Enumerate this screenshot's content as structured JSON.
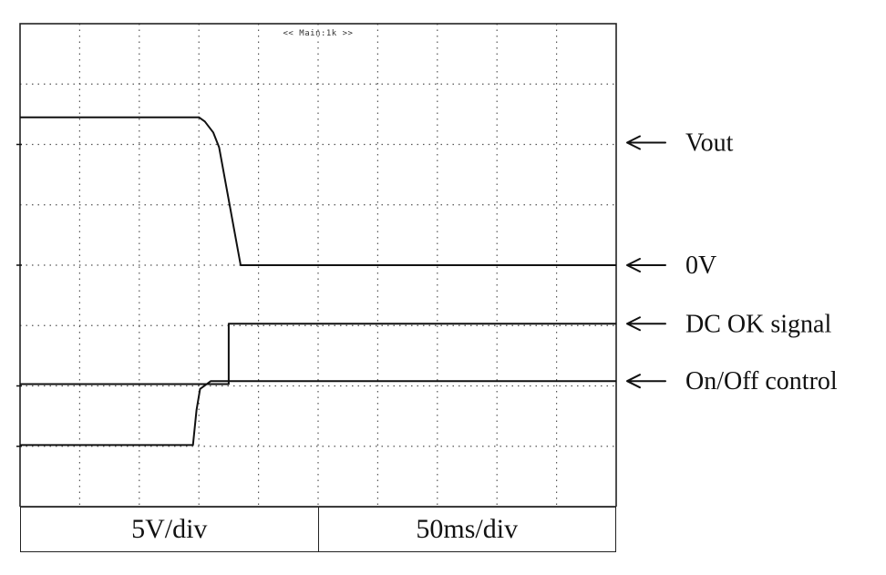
{
  "chart_data": {
    "type": "line",
    "screen_caption": "<< Main:1k >>",
    "grid": true,
    "divisions": {
      "x": 10,
      "y": 8
    },
    "scale": {
      "volts_per_div": "5V/div",
      "time_per_div": "50ms/div"
    },
    "xlim": [
      0,
      500
    ],
    "ylim": [
      0,
      8
    ],
    "series": [
      {
        "name": "Vout",
        "label": "Vout",
        "x": [
          0,
          150,
          155,
          162,
          167,
          185,
          500
        ],
        "y": [
          6.45,
          6.45,
          6.38,
          6.2,
          5.95,
          4.0,
          4.0
        ]
      },
      {
        "name": "DC OK signal",
        "label": "DC OK signal",
        "x": [
          0,
          175,
          175,
          500
        ],
        "y": [
          2.03,
          2.03,
          3.03,
          3.03
        ]
      },
      {
        "name": "On/Off control",
        "label": "On/Off control",
        "x": [
          0,
          145,
          148,
          151,
          160,
          500
        ],
        "y": [
          1.02,
          1.02,
          1.6,
          1.95,
          2.08,
          2.08
        ]
      }
    ],
    "reference_labels": [
      {
        "label": "0V",
        "y": 4.0
      }
    ],
    "channel_markers_y": [
      6.0,
      4.0,
      2.0,
      1.0
    ]
  }
}
